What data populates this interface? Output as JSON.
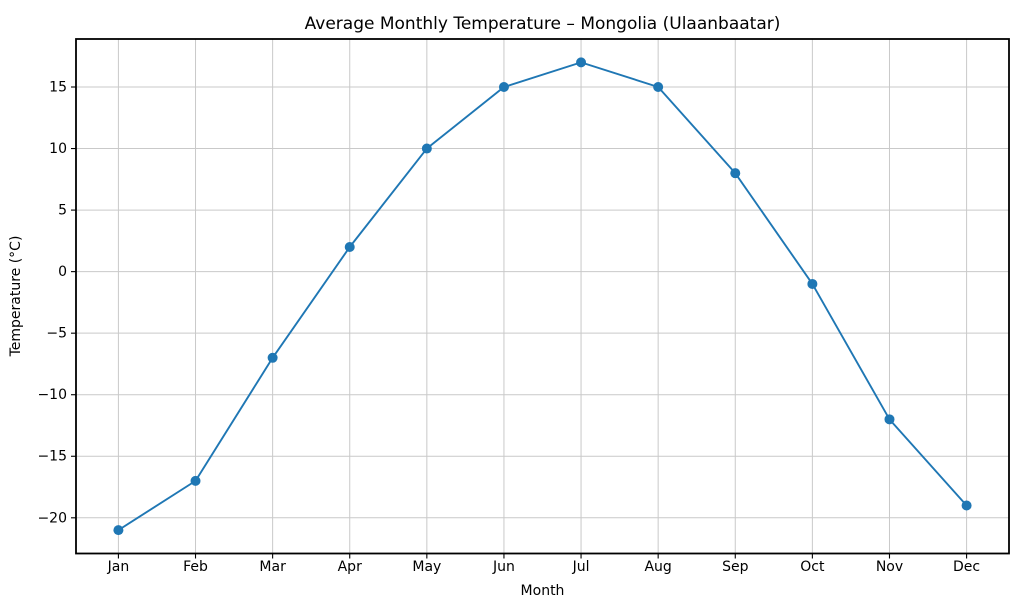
{
  "figure": {
    "background": "#ffffff"
  },
  "chart_data": {
    "type": "line",
    "title": "Average Monthly Temperature – Mongolia (Ulaanbaatar)",
    "xlabel": "Month",
    "ylabel": "Temperature (°C)",
    "categories": [
      "Jan",
      "Feb",
      "Mar",
      "Apr",
      "May",
      "Jun",
      "Jul",
      "Aug",
      "Sep",
      "Oct",
      "Nov",
      "Dec"
    ],
    "values": [
      -21,
      -17,
      -7,
      2,
      10,
      15,
      17,
      15,
      8,
      -1,
      -12,
      -19
    ],
    "yticks": [
      -20,
      -15,
      -10,
      -5,
      0,
      5,
      10,
      15
    ],
    "ylim": [
      -22.9,
      18.9
    ],
    "xlim": [
      -0.55,
      11.55
    ],
    "grid": true,
    "legend_position": "none",
    "line_color": "#1f77b4",
    "marker": "o",
    "marker_radius": 5,
    "line_width": 1.9,
    "grid_color": "#c9c9c9",
    "spine_color": "#000000",
    "tick_color": "#000000"
  }
}
